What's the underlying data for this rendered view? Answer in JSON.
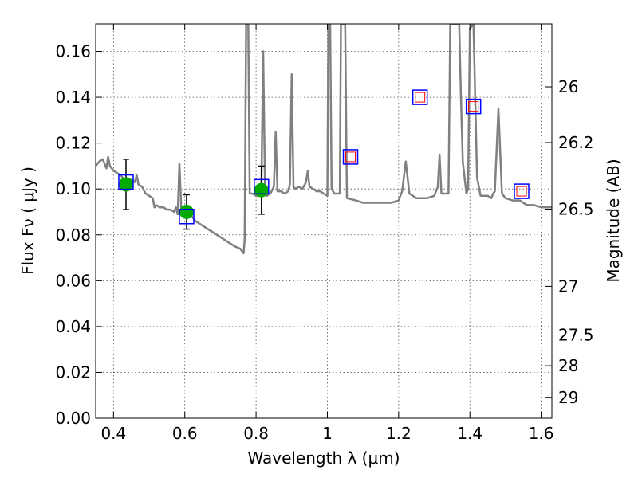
{
  "chart_data": {
    "type": "line",
    "xlabel": "Wavelength  λ (μm)",
    "ylabel": "Flux  Fν  ( μJy )",
    "ylabel_right": "Magnitude (AB)",
    "xlim": [
      0.35,
      1.63
    ],
    "ylim": [
      0.0,
      0.172
    ],
    "grid": true,
    "x_ticks": [
      {
        "value": 0.4,
        "label": "0.4"
      },
      {
        "value": 0.6,
        "label": "0.6"
      },
      {
        "value": 0.8,
        "label": "0.8"
      },
      {
        "value": 1.0,
        "label": "1"
      },
      {
        "value": 1.2,
        "label": "1.2"
      },
      {
        "value": 1.4,
        "label": "1.4"
      },
      {
        "value": 1.6,
        "label": "1.6"
      }
    ],
    "y_ticks": [
      {
        "value": 0.0,
        "label": "0.00"
      },
      {
        "value": 0.02,
        "label": "0.02"
      },
      {
        "value": 0.04,
        "label": "0.04"
      },
      {
        "value": 0.06,
        "label": "0.06"
      },
      {
        "value": 0.08,
        "label": "0.08"
      },
      {
        "value": 0.1,
        "label": "0.10"
      },
      {
        "value": 0.12,
        "label": "0.12"
      },
      {
        "value": 0.14,
        "label": "0.14"
      },
      {
        "value": 0.16,
        "label": "0.16"
      }
    ],
    "right_ticks": [
      {
        "mag": 26.0,
        "label": "26"
      },
      {
        "mag": 26.2,
        "label": "26.2"
      },
      {
        "mag": 26.5,
        "label": "26.5"
      },
      {
        "mag": 27.0,
        "label": "27"
      },
      {
        "mag": 27.5,
        "label": "27.5"
      },
      {
        "mag": 28.0,
        "label": "28"
      },
      {
        "mag": 29.0,
        "label": "29"
      }
    ],
    "series": [
      {
        "style": "gray-line",
        "color": "#808080",
        "points": [
          [
            0.35,
            0.11
          ],
          [
            0.36,
            0.112
          ],
          [
            0.37,
            0.113
          ],
          [
            0.38,
            0.109
          ],
          [
            0.385,
            0.114
          ],
          [
            0.39,
            0.11
          ],
          [
            0.4,
            0.108
          ],
          [
            0.41,
            0.107
          ],
          [
            0.42,
            0.106
          ],
          [
            0.43,
            0.104
          ],
          [
            0.44,
            0.103
          ],
          [
            0.45,
            0.104
          ],
          [
            0.46,
            0.103
          ],
          [
            0.465,
            0.106
          ],
          [
            0.47,
            0.102
          ],
          [
            0.48,
            0.101
          ],
          [
            0.49,
            0.098
          ],
          [
            0.5,
            0.097
          ],
          [
            0.51,
            0.096
          ],
          [
            0.515,
            0.092
          ],
          [
            0.52,
            0.093
          ],
          [
            0.53,
            0.092
          ],
          [
            0.54,
            0.092
          ],
          [
            0.55,
            0.091
          ],
          [
            0.56,
            0.091
          ],
          [
            0.57,
            0.09
          ],
          [
            0.575,
            0.092
          ],
          [
            0.58,
            0.089
          ],
          [
            0.585,
            0.111
          ],
          [
            0.59,
            0.091
          ],
          [
            0.6,
            0.089
          ],
          [
            0.61,
            0.088
          ],
          [
            0.62,
            0.088
          ],
          [
            0.63,
            0.086
          ],
          [
            0.65,
            0.084
          ],
          [
            0.68,
            0.081
          ],
          [
            0.7,
            0.079
          ],
          [
            0.72,
            0.077
          ],
          [
            0.74,
            0.075
          ],
          [
            0.755,
            0.074
          ],
          [
            0.765,
            0.072
          ],
          [
            0.768,
            0.078
          ],
          [
            0.772,
            0.172
          ],
          [
            0.778,
            0.172
          ],
          [
            0.782,
            0.098
          ],
          [
            0.79,
            0.098
          ],
          [
            0.8,
            0.097
          ],
          [
            0.81,
            0.097
          ],
          [
            0.815,
            0.101
          ],
          [
            0.82,
            0.16
          ],
          [
            0.825,
            0.101
          ],
          [
            0.83,
            0.097
          ],
          [
            0.84,
            0.098
          ],
          [
            0.85,
            0.101
          ],
          [
            0.855,
            0.125
          ],
          [
            0.86,
            0.099
          ],
          [
            0.87,
            0.099
          ],
          [
            0.88,
            0.098
          ],
          [
            0.89,
            0.099
          ],
          [
            0.895,
            0.102
          ],
          [
            0.9,
            0.15
          ],
          [
            0.905,
            0.101
          ],
          [
            0.91,
            0.1
          ],
          [
            0.92,
            0.101
          ],
          [
            0.93,
            0.1
          ],
          [
            0.94,
            0.103
          ],
          [
            0.945,
            0.108
          ],
          [
            0.95,
            0.101
          ],
          [
            0.96,
            0.1
          ],
          [
            0.97,
            0.099
          ],
          [
            0.98,
            0.099
          ],
          [
            0.99,
            0.098
          ],
          [
            1.0,
            0.097
          ],
          [
            1.003,
            0.172
          ],
          [
            1.008,
            0.172
          ],
          [
            1.012,
            0.1
          ],
          [
            1.02,
            0.098
          ],
          [
            1.035,
            0.098
          ],
          [
            1.038,
            0.172
          ],
          [
            1.05,
            0.172
          ],
          [
            1.055,
            0.096
          ],
          [
            1.08,
            0.095
          ],
          [
            1.1,
            0.094
          ],
          [
            1.12,
            0.094
          ],
          [
            1.15,
            0.094
          ],
          [
            1.18,
            0.094
          ],
          [
            1.2,
            0.095
          ],
          [
            1.21,
            0.099
          ],
          [
            1.22,
            0.112
          ],
          [
            1.23,
            0.098
          ],
          [
            1.25,
            0.096
          ],
          [
            1.28,
            0.096
          ],
          [
            1.3,
            0.097
          ],
          [
            1.31,
            0.101
          ],
          [
            1.315,
            0.115
          ],
          [
            1.32,
            0.098
          ],
          [
            1.34,
            0.098
          ],
          [
            1.345,
            0.172
          ],
          [
            1.37,
            0.172
          ],
          [
            1.375,
            0.14
          ],
          [
            1.38,
            0.112
          ],
          [
            1.39,
            0.098
          ],
          [
            1.395,
            0.1
          ],
          [
            1.4,
            0.17
          ],
          [
            1.41,
            0.172
          ],
          [
            1.42,
            0.105
          ],
          [
            1.43,
            0.097
          ],
          [
            1.45,
            0.097
          ],
          [
            1.46,
            0.096
          ],
          [
            1.465,
            0.098
          ],
          [
            1.47,
            0.099
          ],
          [
            1.48,
            0.135
          ],
          [
            1.49,
            0.098
          ],
          [
            1.5,
            0.096
          ],
          [
            1.52,
            0.095
          ],
          [
            1.54,
            0.095
          ],
          [
            1.56,
            0.093
          ],
          [
            1.58,
            0.093
          ],
          [
            1.6,
            0.092
          ],
          [
            1.63,
            0.092
          ]
        ]
      },
      {
        "style": "green-points-with-errorbars",
        "color": "#00aa00",
        "points": [
          {
            "x": 0.435,
            "y": 0.102,
            "yerr": 0.011
          },
          {
            "x": 0.605,
            "y": 0.09,
            "yerr": 0.0075
          },
          {
            "x": 0.815,
            "y": 0.0995,
            "yerr": 0.0105
          }
        ]
      },
      {
        "style": "blue-squares",
        "color": "#0000ff",
        "points": [
          [
            0.435,
            0.103
          ],
          [
            0.605,
            0.088
          ],
          [
            0.815,
            0.101
          ],
          [
            1.065,
            0.114
          ],
          [
            1.26,
            0.14
          ],
          [
            1.41,
            0.136
          ],
          [
            1.545,
            0.099
          ]
        ]
      },
      {
        "style": "red-squares",
        "color": "#ff0000",
        "points": [
          [
            1.065,
            0.114
          ],
          [
            1.26,
            0.14
          ],
          [
            1.41,
            0.136
          ],
          [
            1.545,
            0.099
          ]
        ]
      }
    ]
  }
}
